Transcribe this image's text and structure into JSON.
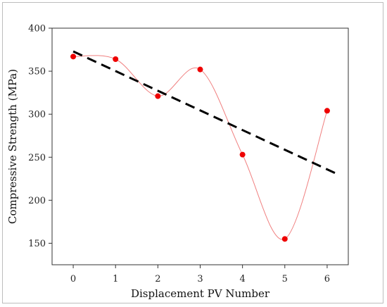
{
  "chart_data": {
    "type": "line",
    "xlabel": "Displacement PV Number",
    "ylabel": "Compressive Strength (MPa)",
    "xlim": [
      -0.5,
      6.5
    ],
    "ylim": [
      125,
      400
    ],
    "x_ticks": [
      0,
      1,
      2,
      3,
      4,
      5,
      6
    ],
    "y_ticks": [
      150,
      200,
      250,
      300,
      350,
      400
    ],
    "grid": false,
    "series": [
      {
        "kind": "scatter-with-smooth-line",
        "color": "#ee0000",
        "line_color": "#f08080",
        "x": [
          0,
          1,
          2,
          3,
          4,
          5,
          6
        ],
        "y": [
          367,
          364,
          321,
          352,
          253,
          155,
          304
        ]
      }
    ],
    "trend_line": {
      "kind": "linear-fit",
      "style": "dashed",
      "color": "#000000",
      "x": [
        0,
        6.3
      ],
      "y": [
        373,
        229
      ]
    }
  }
}
